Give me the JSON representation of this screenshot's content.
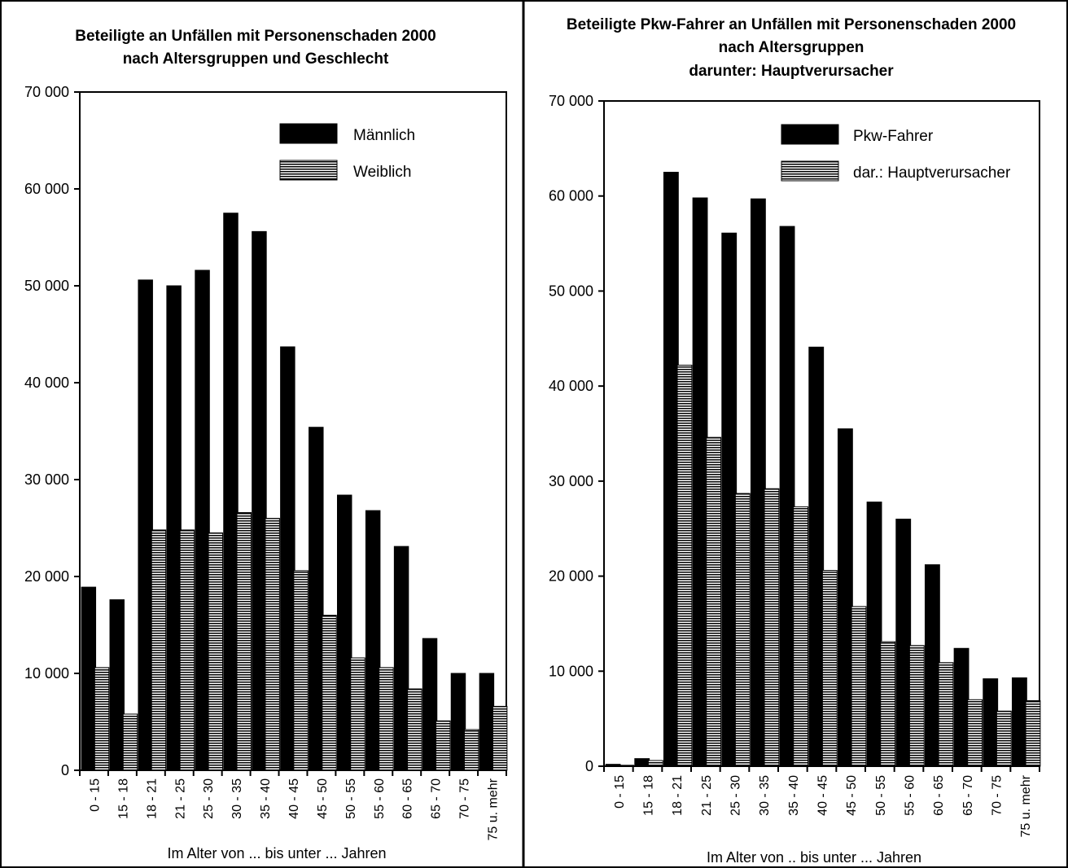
{
  "chart_data": [
    {
      "type": "bar",
      "title_lines": [
        "Beteiligte an Unfällen mit Personenschaden 2000",
        "nach Altersgruppen und Geschlecht"
      ],
      "xlabel": "Im Alter von ... bis unter ... Jahren",
      "ylabel": "",
      "ylim": [
        0,
        70000
      ],
      "yticks": [
        "0",
        "10 000",
        "20 000",
        "30 000",
        "40 000",
        "50 000",
        "60 000",
        "70 000"
      ],
      "categories": [
        "0 - 15",
        "15 - 18",
        "18 - 21",
        "21 - 25",
        "25 - 30",
        "30 - 35",
        "35 - 40",
        "40 - 45",
        "45 - 50",
        "50 - 55",
        "55 - 60",
        "60 - 65",
        "65 - 70",
        "70 - 75",
        "75 u. mehr"
      ],
      "series": [
        {
          "name": "Männlich",
          "pattern": "solid",
          "color": "#000000",
          "values": [
            18900,
            17600,
            50600,
            50000,
            51600,
            57500,
            55600,
            43700,
            35400,
            28400,
            26800,
            23100,
            13600,
            10000,
            10000
          ]
        },
        {
          "name": "Weiblich",
          "pattern": "horizontal-stripes",
          "color": "#000000",
          "values": [
            10600,
            5800,
            24800,
            24800,
            24500,
            26600,
            26000,
            20600,
            16000,
            11600,
            10600,
            8400,
            5100,
            4200,
            6600
          ]
        }
      ],
      "grid": false,
      "legend": "top-right"
    },
    {
      "type": "bar",
      "title_lines": [
        "Beteiligte Pkw-Fahrer an Unfällen mit Personenschaden 2000",
        "nach Altersgruppen",
        "darunter: Hauptverursacher"
      ],
      "xlabel": "Im Alter von .. bis unter ... Jahren",
      "ylabel": "",
      "ylim": [
        0,
        70000
      ],
      "yticks": [
        "0",
        "10 000",
        "20 000",
        "30 000",
        "40 000",
        "50 000",
        "60 000",
        "70 000"
      ],
      "categories": [
        "0 - 15",
        "15 - 18",
        "18 - 21",
        "21 - 25",
        "25 - 30",
        "30 - 35",
        "35 - 40",
        "40 - 45",
        "45 - 50",
        "50 - 55",
        "55 - 60",
        "60 - 65",
        "65 - 70",
        "70 - 75",
        "75 u. mehr"
      ],
      "series": [
        {
          "name": "Pkw-Fahrer",
          "pattern": "solid",
          "color": "#000000",
          "values": [
            200,
            800,
            62500,
            59800,
            56100,
            59700,
            56800,
            44100,
            35500,
            27800,
            26000,
            21200,
            12400,
            9200,
            9300
          ]
        },
        {
          "name": "dar.: Hauptverursacher",
          "pattern": "horizontal-stripes",
          "color": "#000000",
          "values": [
            100,
            600,
            42200,
            34600,
            28700,
            29200,
            27300,
            20600,
            16800,
            13100,
            12700,
            10900,
            7000,
            5800,
            6900
          ]
        }
      ],
      "grid": false,
      "legend": "top-right"
    }
  ]
}
